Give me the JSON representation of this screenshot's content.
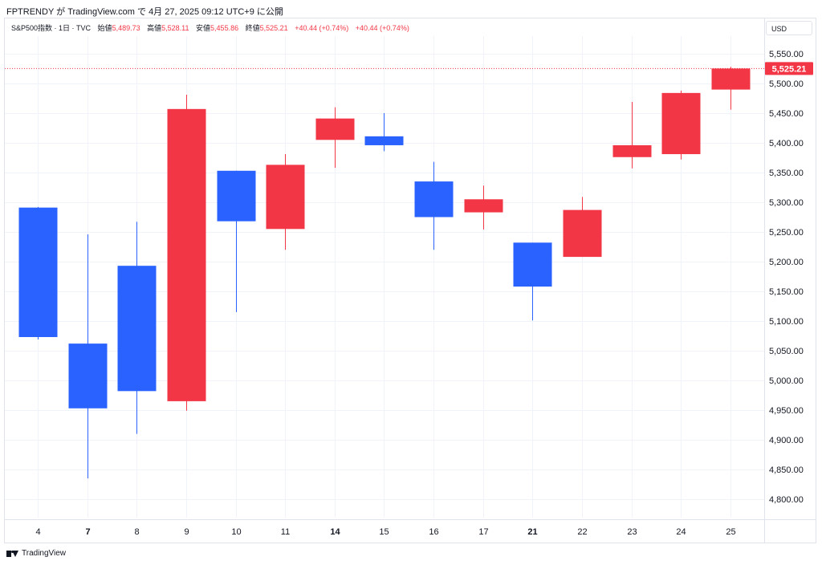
{
  "header": {
    "published": "FPTRENDY が TradingView.com で 4月 27, 2025 09:12 UTC+9 に公開"
  },
  "legend": {
    "symbol": "S&P500指数 · 1日 · TVC",
    "open_label": "始値",
    "open": "5,489.73",
    "high_label": "高値",
    "high": "5,528.11",
    "low_label": "安値",
    "low": "5,455.86",
    "close_label": "終値",
    "close": "5,525.21",
    "change1": "+40.44 (+0.74%)",
    "change2": "+40.44 (+0.74%)"
  },
  "currency_button": "USD",
  "footer": {
    "brand": "TradingView"
  },
  "colors": {
    "up": "#f23645",
    "down": "#2962ff",
    "grid": "#f0f3fa",
    "price_line": "#f23645"
  },
  "chart_data": {
    "type": "candlestick",
    "ylim": [
      4770,
      5580
    ],
    "y_ticks": [
      4800,
      4850,
      4900,
      4950,
      5000,
      5050,
      5100,
      5150,
      5200,
      5250,
      5300,
      5350,
      5400,
      5450,
      5500,
      5550
    ],
    "y_tick_labels": [
      "4,800.00",
      "4,850.00",
      "4,900.00",
      "4,950.00",
      "5,000.00",
      "5,050.00",
      "5,100.00",
      "5,150.00",
      "5,200.00",
      "5,250.00",
      "5,300.00",
      "5,350.00",
      "5,400.00",
      "5,450.00",
      "5,500.00",
      "5,550.00"
    ],
    "last_price": 5525.21,
    "last_price_label": "5,525.21",
    "grid": true,
    "candles": [
      {
        "x": "4",
        "bold": false,
        "open": 5291,
        "high": 5292,
        "low": 5069,
        "close": 5073
      },
      {
        "x": "7",
        "bold": true,
        "open": 5062,
        "high": 5246,
        "low": 4835,
        "close": 4953
      },
      {
        "x": "8",
        "bold": false,
        "open": 5193,
        "high": 5267,
        "low": 4910,
        "close": 4982
      },
      {
        "x": "9",
        "bold": false,
        "open": 4965,
        "high": 5481,
        "low": 4949,
        "close": 5457
      },
      {
        "x": "10",
        "bold": false,
        "open": 5353,
        "high": 5353,
        "low": 5115,
        "close": 5268
      },
      {
        "x": "11",
        "bold": false,
        "open": 5255,
        "high": 5381,
        "low": 5220,
        "close": 5363
      },
      {
        "x": "14",
        "bold": true,
        "open": 5405,
        "high": 5460,
        "low": 5358,
        "close": 5441
      },
      {
        "x": "15",
        "bold": false,
        "open": 5411,
        "high": 5450,
        "low": 5386,
        "close": 5396
      },
      {
        "x": "16",
        "bold": false,
        "open": 5335,
        "high": 5368,
        "low": 5220,
        "close": 5275
      },
      {
        "x": "17",
        "bold": false,
        "open": 5283,
        "high": 5328,
        "low": 5254,
        "close": 5305
      },
      {
        "x": "21",
        "bold": true,
        "open": 5232,
        "high": 5232,
        "low": 5101,
        "close": 5158
      },
      {
        "x": "22",
        "bold": false,
        "open": 5208,
        "high": 5309,
        "low": 5208,
        "close": 5287
      },
      {
        "x": "23",
        "bold": false,
        "open": 5376,
        "high": 5469,
        "low": 5357,
        "close": 5396
      },
      {
        "x": "24",
        "bold": false,
        "open": 5381,
        "high": 5488,
        "low": 5372,
        "close": 5484
      },
      {
        "x": "25",
        "bold": false,
        "open": 5489.73,
        "high": 5528.11,
        "low": 5455.86,
        "close": 5525.21
      }
    ]
  }
}
